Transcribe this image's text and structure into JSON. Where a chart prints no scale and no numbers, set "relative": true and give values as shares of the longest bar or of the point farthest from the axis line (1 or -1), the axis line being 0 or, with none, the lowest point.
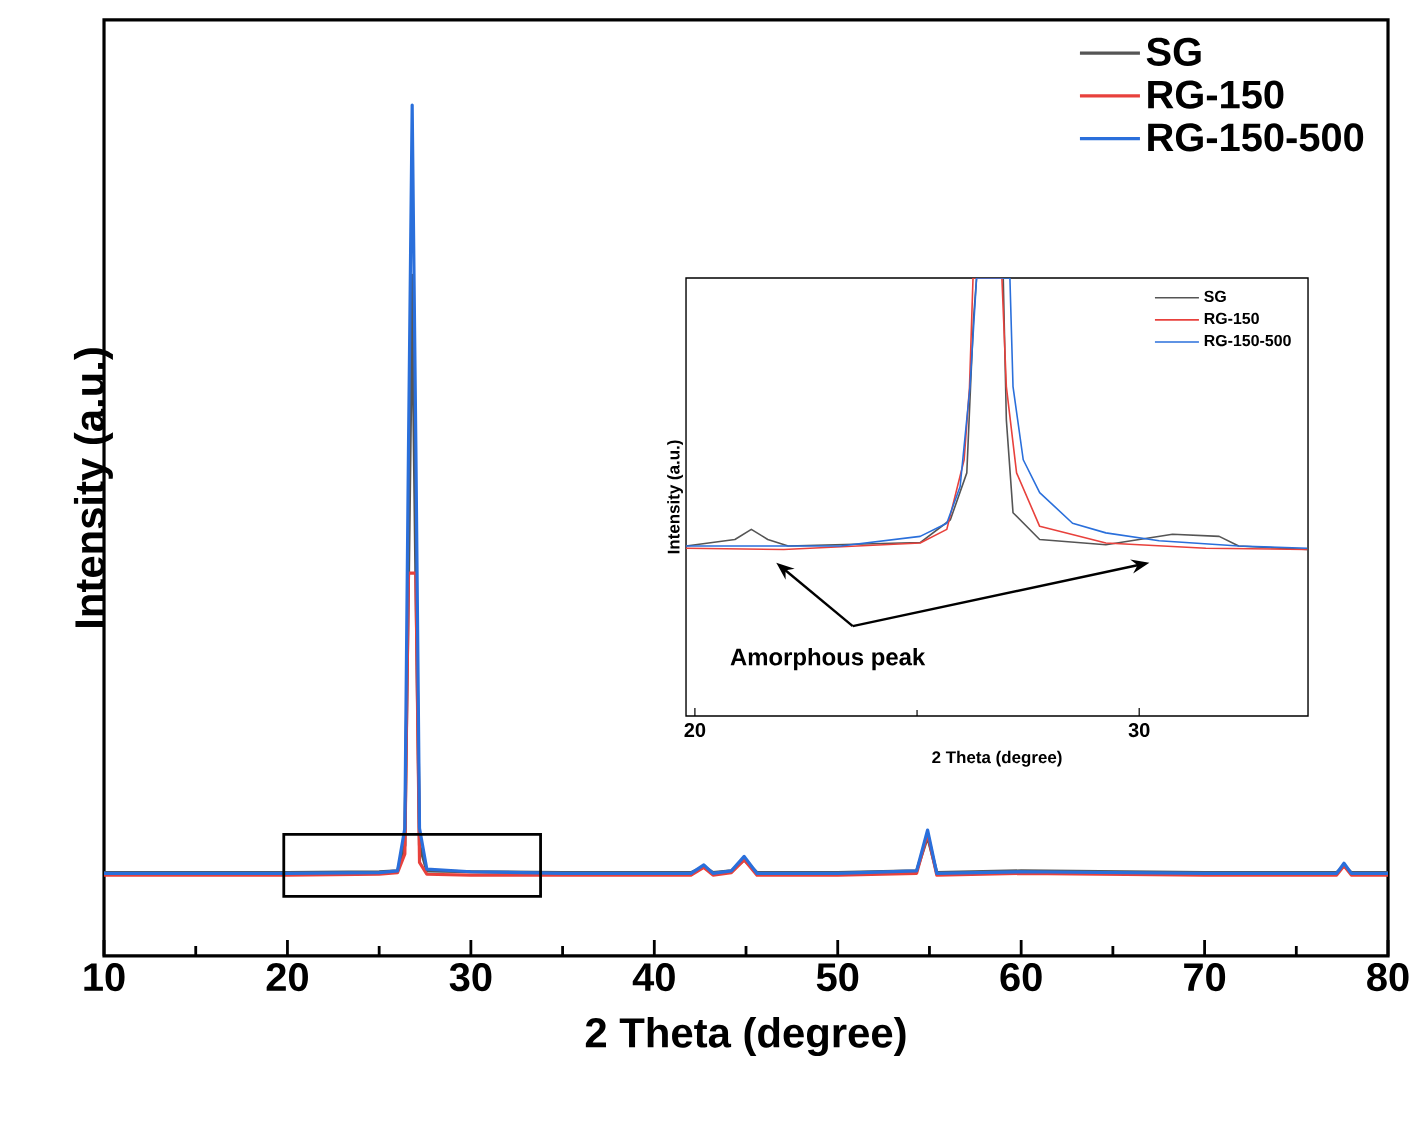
{
  "chart_data": [
    {
      "type": "line",
      "xlabel": "2 Theta (degree)",
      "ylabel": "Intensity (a.u.)",
      "relative": true,
      "xlim": [
        10,
        80
      ],
      "xticks": [
        10,
        20,
        30,
        40,
        50,
        60,
        70,
        80
      ],
      "legend": "top right",
      "series": [
        {
          "name": "SG",
          "color": "#555555",
          "x": [
            10,
            20,
            25,
            26,
            26.4,
            26.6,
            26.8,
            27,
            27.2,
            27.6,
            30,
            35,
            42,
            42.7,
            43.2,
            44.2,
            44.9,
            45.6,
            50,
            54.3,
            54.9,
            55.4,
            60,
            70,
            77.2,
            77.6,
            78,
            80
          ],
          "values": [
            0.098,
            0.098,
            0.099,
            0.1,
            0.13,
            0.45,
            0.8,
            0.45,
            0.13,
            0.1,
            0.099,
            0.098,
            0.098,
            0.105,
            0.098,
            0.1,
            0.113,
            0.098,
            0.098,
            0.1,
            0.14,
            0.098,
            0.1,
            0.098,
            0.098,
            0.106,
            0.098,
            0.098
          ]
        },
        {
          "name": "RG-150",
          "color": "#e8413c",
          "x": [
            10,
            20,
            25,
            26,
            26.4,
            26.6,
            26.8,
            27,
            27.2,
            27.6,
            30,
            35,
            42,
            42.7,
            43.2,
            44.2,
            44.9,
            45.6,
            50,
            54.3,
            54.9,
            55.4,
            60,
            70,
            77.2,
            77.6,
            78,
            80
          ],
          "values": [
            0.095,
            0.095,
            0.096,
            0.098,
            0.12,
            0.45,
            null,
            0.45,
            0.11,
            0.096,
            0.095,
            0.095,
            0.095,
            0.104,
            0.095,
            0.098,
            0.113,
            0.095,
            0.095,
            0.097,
            0.144,
            0.095,
            0.097,
            0.095,
            0.095,
            0.106,
            0.095,
            0.095
          ]
        },
        {
          "name": "RG-150-500",
          "color": "#2a6fdb",
          "x": [
            10,
            20,
            25,
            26,
            26.4,
            26.6,
            26.8,
            27,
            27.2,
            27.6,
            30,
            35,
            42,
            42.7,
            43.2,
            44.2,
            44.9,
            45.6,
            50,
            54.3,
            54.9,
            55.4,
            60,
            70,
            77.2,
            77.6,
            78,
            80
          ],
          "values": [
            0.097,
            0.097,
            0.098,
            0.1,
            0.15,
            0.6,
            1.0,
            0.6,
            0.15,
            0.102,
            0.099,
            0.097,
            0.097,
            0.107,
            0.097,
            0.1,
            0.117,
            0.097,
            0.097,
            0.1,
            0.148,
            0.097,
            0.099,
            0.097,
            0.097,
            0.109,
            0.097,
            0.097
          ]
        }
      ]
    },
    {
      "type": "line",
      "xlabel": "2 Theta (degree)",
      "ylabel": "Intensity (a.u.)",
      "relative": true,
      "xlim": [
        19.8,
        33.8
      ],
      "xticks": [
        20,
        30
      ],
      "legend": "top right",
      "annotations": [
        "Amorphous peak"
      ],
      "series": [
        {
          "name": "SG",
          "color": "#555555",
          "x": [
            19.8,
            20.9,
            21.27,
            21.64,
            22.1,
            25.07,
            25.75,
            26.12,
            26.27,
            26.34,
            26.94,
            27.01,
            27.16,
            27.76,
            29.25,
            30.75,
            31.8,
            32.24,
            33.78
          ],
          "values": [
            0.388,
            0.403,
            0.426,
            0.403,
            0.388,
            0.396,
            0.448,
            0.555,
            0.905,
            1.0,
            1.0,
            0.676,
            0.464,
            0.403,
            0.391,
            0.415,
            0.41,
            0.388,
            0.38
          ]
        },
        {
          "name": "RG-150",
          "color": "#e8413c",
          "x": [
            19.8,
            22.0,
            25.07,
            25.67,
            26.06,
            26.18,
            26.26,
            26.91,
            27.01,
            27.24,
            27.76,
            29.25,
            31.5,
            33.78
          ],
          "values": [
            0.383,
            0.38,
            0.395,
            0.426,
            0.585,
            0.75,
            1.0,
            1.0,
            0.752,
            0.555,
            0.433,
            0.395,
            0.383,
            0.38
          ]
        },
        {
          "name": "RG-150-500",
          "color": "#2a6fdb",
          "x": [
            19.8,
            23.28,
            25.07,
            25.67,
            25.97,
            26.19,
            26.34,
            27.09,
            27.16,
            27.39,
            27.76,
            28.5,
            29.25,
            30.45,
            32.24,
            33.78
          ],
          "values": [
            0.388,
            0.388,
            0.41,
            0.44,
            0.524,
            0.75,
            1.0,
            1.0,
            0.752,
            0.585,
            0.51,
            0.44,
            0.418,
            0.4,
            0.388,
            0.383
          ]
        }
      ]
    }
  ]
}
